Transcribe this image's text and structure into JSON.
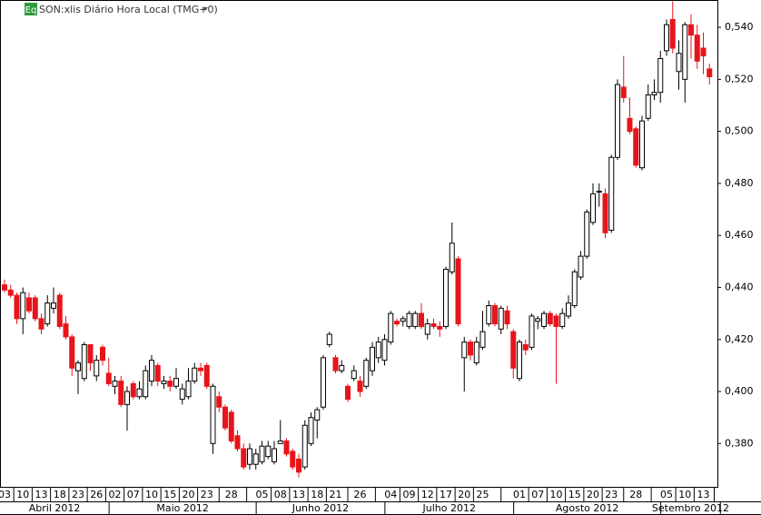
{
  "chart_data": {
    "type": "candlestick",
    "icon": "Eq",
    "title": "SON:xlis Diário Hora Local (TMG+0)",
    "up_color": "#ffffff",
    "down_color": "#e8141b",
    "categories": [
      "03",
      null,
      null,
      "10",
      null,
      null,
      "13",
      null,
      null,
      "18",
      null,
      null,
      "23",
      null,
      null,
      "26",
      null,
      null,
      "02",
      null,
      null,
      "07",
      null,
      null,
      "10",
      null,
      null,
      "15",
      null,
      null,
      "20",
      null,
      null,
      "23",
      null,
      null,
      null,
      "28",
      null,
      null,
      null,
      null,
      "05",
      null,
      null,
      "08",
      null,
      null,
      "13",
      null,
      null,
      "18",
      null,
      null,
      "21",
      null,
      null,
      null,
      "26",
      null,
      null,
      null,
      null,
      "04",
      null,
      null,
      "09",
      null,
      null,
      "12",
      null,
      null,
      "17",
      null,
      null,
      "20",
      null,
      null,
      "25",
      null,
      null,
      null,
      null,
      null,
      "01",
      null,
      null,
      "07",
      null,
      null,
      "10",
      null,
      null,
      "15",
      null,
      null,
      "20",
      null,
      null,
      "23",
      null,
      null,
      null,
      "28",
      null,
      null,
      null,
      null,
      "05",
      null,
      null,
      "10",
      null,
      null,
      "13",
      null
    ],
    "months": [
      "Abril 2012",
      "Maio 2012",
      "Junho 2012",
      "Julho 2012",
      "Agosto 2012",
      "Setembro 2012"
    ],
    "open": [
      0.441,
      0.439,
      0.437,
      0.428,
      0.436,
      0.436,
      0.428,
      0.426,
      0.432,
      0.437,
      0.426,
      0.421,
      0.408,
      0.405,
      0.418,
      0.406,
      0.417,
      0.407,
      0.402,
      0.404,
      0.395,
      0.403,
      0.398,
      0.398,
      0.404,
      0.41,
      0.403,
      0.404,
      0.402,
      0.397,
      0.398,
      0.404,
      0.409,
      0.41,
      0.38,
      0.398,
      0.394,
      0.392,
      0.383,
      0.378,
      0.372,
      0.372,
      0.373,
      0.375,
      0.373,
      0.38,
      0.381,
      0.377,
      0.374,
      0.371,
      0.38,
      0.389,
      0.394,
      0.418,
      0.413,
      0.408,
      0.402,
      0.405,
      0.404,
      0.402,
      0.408,
      0.413,
      0.412,
      0.419,
      0.427,
      0.427,
      0.425,
      0.425,
      0.43,
      0.422,
      0.426,
      0.425,
      0.425,
      0.446,
      0.451,
      0.413,
      0.419,
      0.411,
      0.417,
      0.426,
      0.433,
      0.424,
      0.431,
      0.423,
      0.405,
      0.418,
      0.417,
      0.427,
      0.425,
      0.43,
      0.429,
      0.425,
      0.429,
      0.433,
      0.444,
      0.452,
      0.465,
      0.477,
      0.476,
      0.462,
      0.49,
      0.517,
      0.505,
      0.501,
      0.486,
      0.505,
      0.514,
      0.515,
      0.531,
      0.543,
      0.523,
      0.52,
      0.541,
      0.537,
      0.532,
      0.524
    ],
    "high": [
      0.443,
      0.441,
      0.438,
      0.44,
      0.438,
      0.437,
      0.43,
      0.437,
      0.44,
      0.438,
      0.429,
      0.422,
      0.412,
      0.419,
      0.418,
      0.414,
      0.418,
      0.413,
      0.406,
      0.406,
      0.402,
      0.404,
      0.404,
      0.41,
      0.414,
      0.411,
      0.406,
      0.406,
      0.409,
      0.403,
      0.409,
      0.411,
      0.411,
      0.411,
      0.403,
      0.4,
      0.395,
      0.393,
      0.385,
      0.38,
      0.38,
      0.378,
      0.381,
      0.381,
      0.381,
      0.389,
      0.382,
      0.378,
      0.376,
      0.389,
      0.392,
      0.394,
      0.414,
      0.423,
      0.414,
      0.412,
      0.403,
      0.41,
      0.406,
      0.413,
      0.419,
      0.421,
      0.422,
      0.431,
      0.428,
      0.429,
      0.431,
      0.431,
      0.434,
      0.428,
      0.428,
      0.427,
      0.448,
      0.465,
      0.452,
      0.421,
      0.42,
      0.421,
      0.431,
      0.435,
      0.434,
      0.433,
      0.433,
      0.424,
      0.42,
      0.42,
      0.43,
      0.429,
      0.431,
      0.431,
      0.43,
      0.432,
      0.437,
      0.447,
      0.454,
      0.47,
      0.48,
      0.48,
      0.478,
      0.491,
      0.52,
      0.529,
      0.513,
      0.502,
      0.506,
      0.518,
      0.52,
      0.531,
      0.543,
      0.55,
      0.535,
      0.542,
      0.545,
      0.541,
      0.538,
      0.526
    ],
    "low": [
      0.438,
      0.436,
      0.426,
      0.422,
      0.43,
      0.427,
      0.422,
      0.425,
      0.43,
      0.424,
      0.42,
      0.406,
      0.399,
      0.404,
      0.408,
      0.404,
      0.41,
      0.402,
      0.399,
      0.394,
      0.385,
      0.397,
      0.397,
      0.397,
      0.402,
      0.402,
      0.401,
      0.4,
      0.401,
      0.395,
      0.397,
      0.403,
      0.406,
      0.401,
      0.376,
      0.392,
      0.385,
      0.38,
      0.377,
      0.37,
      0.37,
      0.37,
      0.372,
      0.374,
      0.372,
      0.38,
      0.375,
      0.37,
      0.367,
      0.37,
      0.379,
      0.382,
      0.393,
      0.417,
      0.407,
      0.407,
      0.396,
      0.404,
      0.398,
      0.401,
      0.406,
      0.411,
      0.41,
      0.418,
      0.425,
      0.425,
      0.424,
      0.424,
      0.424,
      0.42,
      0.424,
      0.421,
      0.424,
      0.445,
      0.425,
      0.4,
      0.412,
      0.41,
      0.416,
      0.425,
      0.425,
      0.422,
      0.424,
      0.405,
      0.404,
      0.414,
      0.416,
      0.424,
      0.424,
      0.425,
      0.403,
      0.424,
      0.428,
      0.432,
      0.443,
      0.451,
      0.464,
      0.471,
      0.459,
      0.461,
      0.489,
      0.511,
      0.499,
      0.486,
      0.485,
      0.504,
      0.512,
      0.511,
      0.529,
      0.53,
      0.516,
      0.511,
      0.528,
      0.524,
      0.522,
      0.518
    ],
    "close": [
      0.439,
      0.437,
      0.428,
      0.438,
      0.431,
      0.428,
      0.424,
      0.434,
      0.434,
      0.425,
      0.421,
      0.409,
      0.411,
      0.418,
      0.411,
      0.412,
      0.412,
      0.403,
      0.404,
      0.395,
      0.4,
      0.398,
      0.401,
      0.408,
      0.412,
      0.404,
      0.404,
      0.402,
      0.405,
      0.401,
      0.404,
      0.409,
      0.408,
      0.402,
      0.402,
      0.394,
      0.386,
      0.381,
      0.378,
      0.371,
      0.378,
      0.376,
      0.379,
      0.379,
      0.378,
      0.381,
      0.376,
      0.371,
      0.369,
      0.387,
      0.39,
      0.393,
      0.413,
      0.422,
      0.408,
      0.41,
      0.397,
      0.408,
      0.4,
      0.412,
      0.417,
      0.419,
      0.42,
      0.43,
      0.426,
      0.428,
      0.43,
      0.43,
      0.425,
      0.426,
      0.425,
      0.424,
      0.447,
      0.457,
      0.426,
      0.419,
      0.414,
      0.419,
      0.423,
      0.433,
      0.426,
      0.432,
      0.426,
      0.409,
      0.419,
      0.416,
      0.429,
      0.428,
      0.43,
      0.426,
      0.425,
      0.43,
      0.434,
      0.446,
      0.452,
      0.469,
      0.476,
      0.477,
      0.461,
      0.49,
      0.518,
      0.513,
      0.5,
      0.487,
      0.504,
      0.514,
      0.515,
      0.528,
      0.541,
      0.532,
      0.53,
      0.541,
      0.537,
      0.527,
      0.529,
      0.521
    ],
    "ylim": [
      0.363,
      0.5505
    ],
    "yticks": [
      {
        "value": 0.38,
        "label": "0,380"
      },
      {
        "value": 0.4,
        "label": "0,400"
      },
      {
        "value": 0.42,
        "label": "0,420"
      },
      {
        "value": 0.44,
        "label": "0,440"
      },
      {
        "value": 0.46,
        "label": "0,460"
      },
      {
        "value": 0.48,
        "label": "0,480"
      },
      {
        "value": 0.5,
        "label": "0,500"
      },
      {
        "value": 0.52,
        "label": "0,520"
      },
      {
        "value": 0.54,
        "label": "0,540"
      }
    ]
  }
}
